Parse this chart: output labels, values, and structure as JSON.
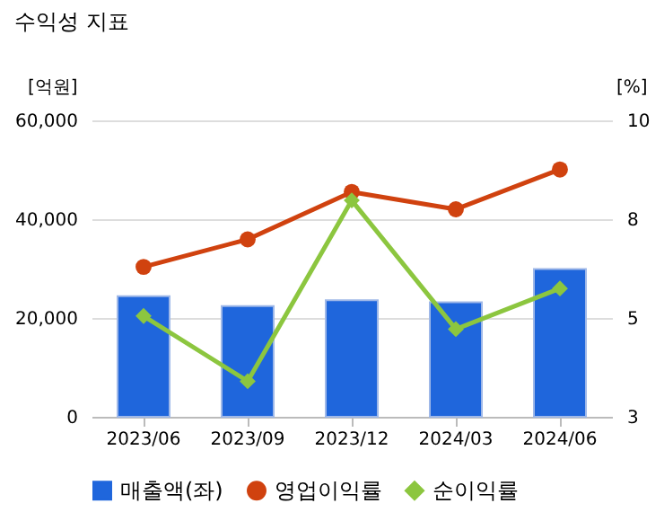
{
  "chart_data": {
    "type": "bar",
    "title": "수익성 지표",
    "ylabel": "[억원]",
    "y2label": "[%]",
    "categories": [
      "2023/06",
      "2023/09",
      "2023/12",
      "2024/03",
      "2024/06"
    ],
    "series": [
      {
        "name": "매출액(좌)",
        "color": "#1f66dc",
        "values": [
          24400,
          22400,
          23600,
          23200,
          29900
        ]
      },
      {
        "name": "영업이익률",
        "type": "line",
        "axis": "y2",
        "marker": "circle",
        "color": "#d0420f",
        "values": [
          6.54,
          7.19,
          8.31,
          7.9,
          8.84
        ]
      },
      {
        "name": "순이익률",
        "type": "line",
        "axis": "y2",
        "marker": "diamond",
        "color": "#8cc63f",
        "values": [
          5.38,
          3.84,
          8.11,
          5.07,
          6.03
        ]
      }
    ],
    "ylim": [
      0,
      60000
    ],
    "yticks": [
      {
        "value": 0,
        "label": "0"
      },
      {
        "value": 20000,
        "label": "20,000"
      },
      {
        "value": 40000,
        "label": "40,000"
      },
      {
        "value": 60000,
        "label": "60,000"
      }
    ],
    "y2lim": [
      3,
      10
    ],
    "y2ticks": [
      3,
      {
        "value": 5.333,
        "label": "5"
      },
      {
        "value": 7.667,
        "label": "8"
      },
      10
    ],
    "grid": "y",
    "legend": "bottom"
  }
}
